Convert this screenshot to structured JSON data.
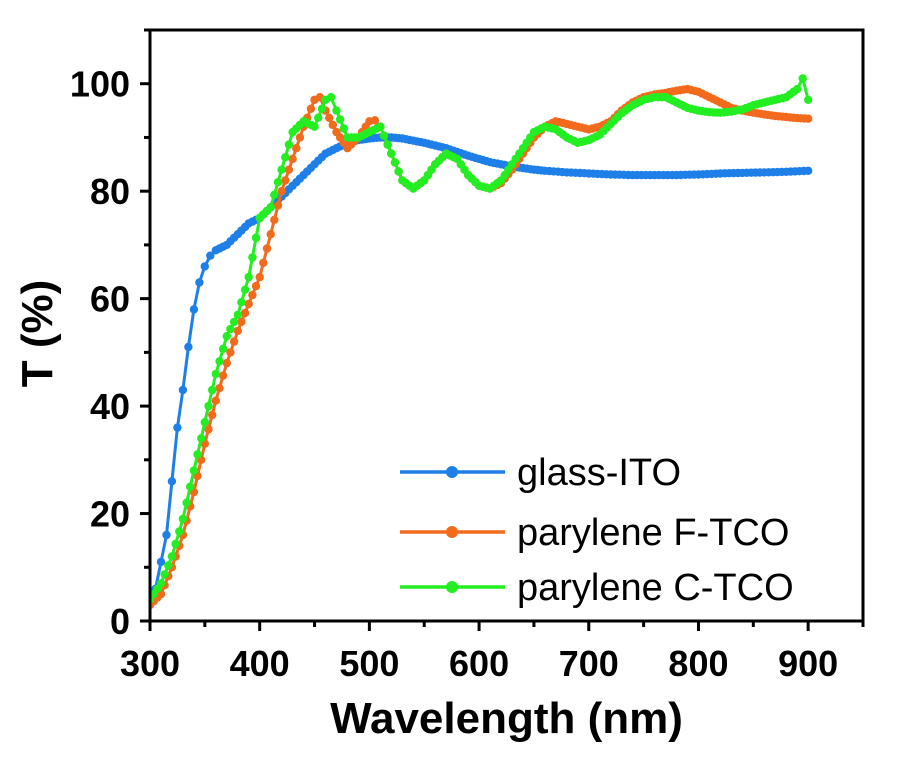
{
  "chart_data": {
    "type": "line",
    "xlabel": "Wavelength (nm)",
    "ylabel": "T (%)",
    "xlim": [
      300,
      950
    ],
    "ylim": [
      0,
      110
    ],
    "xticks": [
      300,
      400,
      500,
      600,
      700,
      800,
      900
    ],
    "yticks": [
      0,
      20,
      40,
      60,
      80,
      100
    ],
    "legend_position": "bottom-right",
    "grid": false,
    "series": [
      {
        "name": "glass-ITO",
        "color": "#1E7FE8",
        "points": [
          [
            300,
            3
          ],
          [
            305,
            6
          ],
          [
            310,
            11
          ],
          [
            315,
            16
          ],
          [
            320,
            26
          ],
          [
            325,
            36
          ],
          [
            330,
            43
          ],
          [
            335,
            51
          ],
          [
            340,
            58
          ],
          [
            345,
            63
          ],
          [
            350,
            66
          ],
          [
            355,
            68
          ],
          [
            360,
            69
          ],
          [
            370,
            70
          ],
          [
            380,
            72
          ],
          [
            390,
            74
          ],
          [
            400,
            75
          ],
          [
            410,
            77
          ],
          [
            420,
            79
          ],
          [
            430,
            81
          ],
          [
            440,
            83
          ],
          [
            450,
            85
          ],
          [
            460,
            87
          ],
          [
            470,
            88
          ],
          [
            480,
            89
          ],
          [
            490,
            89.5
          ],
          [
            500,
            89.8
          ],
          [
            510,
            90
          ],
          [
            520,
            90
          ],
          [
            530,
            89.8
          ],
          [
            540,
            89.4
          ],
          [
            550,
            89
          ],
          [
            560,
            88.5
          ],
          [
            570,
            88
          ],
          [
            580,
            87.3
          ],
          [
            590,
            86.6
          ],
          [
            600,
            86
          ],
          [
            610,
            85.4
          ],
          [
            620,
            85
          ],
          [
            630,
            84.6
          ],
          [
            640,
            84.3
          ],
          [
            650,
            84
          ],
          [
            660,
            83.8
          ],
          [
            680,
            83.5
          ],
          [
            700,
            83.3
          ],
          [
            720,
            83.1
          ],
          [
            740,
            83
          ],
          [
            760,
            83
          ],
          [
            780,
            83
          ],
          [
            800,
            83.1
          ],
          [
            820,
            83.3
          ],
          [
            840,
            83.4
          ],
          [
            860,
            83.5
          ],
          [
            880,
            83.6
          ],
          [
            900,
            83.8
          ]
        ]
      },
      {
        "name": "parylene F-TCO",
        "color": "#F26A1B",
        "points": [
          [
            300,
            3
          ],
          [
            310,
            5
          ],
          [
            320,
            10
          ],
          [
            330,
            16
          ],
          [
            340,
            24
          ],
          [
            350,
            33
          ],
          [
            360,
            41
          ],
          [
            370,
            48
          ],
          [
            380,
            54
          ],
          [
            390,
            59
          ],
          [
            400,
            64
          ],
          [
            410,
            72
          ],
          [
            420,
            80
          ],
          [
            430,
            86
          ],
          [
            440,
            92
          ],
          [
            450,
            97
          ],
          [
            455,
            97.5
          ],
          [
            460,
            95
          ],
          [
            470,
            91
          ],
          [
            480,
            88
          ],
          [
            490,
            90
          ],
          [
            500,
            93
          ],
          [
            505,
            93.2
          ],
          [
            510,
            92
          ],
          [
            520,
            87
          ],
          [
            530,
            82
          ],
          [
            540,
            80.5
          ],
          [
            550,
            82
          ],
          [
            560,
            85
          ],
          [
            570,
            87
          ],
          [
            580,
            86
          ],
          [
            590,
            83
          ],
          [
            600,
            81
          ],
          [
            610,
            80.5
          ],
          [
            620,
            81.5
          ],
          [
            630,
            84
          ],
          [
            640,
            87
          ],
          [
            650,
            90
          ],
          [
            660,
            92
          ],
          [
            670,
            93
          ],
          [
            680,
            92.5
          ],
          [
            690,
            92
          ],
          [
            700,
            91.5
          ],
          [
            710,
            92
          ],
          [
            720,
            93
          ],
          [
            730,
            95
          ],
          [
            740,
            96.5
          ],
          [
            750,
            97.5
          ],
          [
            760,
            98
          ],
          [
            770,
            98.3
          ],
          [
            780,
            98.7
          ],
          [
            790,
            99
          ],
          [
            800,
            98.5
          ],
          [
            810,
            97.5
          ],
          [
            820,
            96.5
          ],
          [
            830,
            95.5
          ],
          [
            840,
            95
          ],
          [
            850,
            94.6
          ],
          [
            860,
            94.3
          ],
          [
            870,
            94
          ],
          [
            880,
            93.8
          ],
          [
            890,
            93.6
          ],
          [
            900,
            93.5
          ]
        ]
      },
      {
        "name": "parylene C-TCO",
        "color": "#22EE22",
        "points": [
          [
            300,
            4
          ],
          [
            310,
            7
          ],
          [
            320,
            12
          ],
          [
            330,
            19
          ],
          [
            340,
            28
          ],
          [
            350,
            37
          ],
          [
            360,
            46
          ],
          [
            370,
            53
          ],
          [
            380,
            57
          ],
          [
            390,
            64
          ],
          [
            400,
            75
          ],
          [
            410,
            77
          ],
          [
            420,
            84
          ],
          [
            430,
            91
          ],
          [
            440,
            93
          ],
          [
            450,
            92
          ],
          [
            460,
            97
          ],
          [
            465,
            97.5
          ],
          [
            470,
            95
          ],
          [
            480,
            90
          ],
          [
            490,
            90
          ],
          [
            500,
            91
          ],
          [
            510,
            92
          ],
          [
            520,
            87
          ],
          [
            530,
            82
          ],
          [
            540,
            80.5
          ],
          [
            550,
            82
          ],
          [
            560,
            85
          ],
          [
            570,
            87
          ],
          [
            580,
            86
          ],
          [
            590,
            83
          ],
          [
            600,
            81
          ],
          [
            610,
            80.5
          ],
          [
            620,
            82
          ],
          [
            630,
            85
          ],
          [
            640,
            88
          ],
          [
            650,
            91
          ],
          [
            660,
            92
          ],
          [
            670,
            91.5
          ],
          [
            680,
            90
          ],
          [
            690,
            89
          ],
          [
            700,
            89.5
          ],
          [
            710,
            90.5
          ],
          [
            720,
            92.5
          ],
          [
            730,
            94.5
          ],
          [
            740,
            96
          ],
          [
            750,
            97
          ],
          [
            760,
            97.5
          ],
          [
            770,
            97.5
          ],
          [
            780,
            96.5
          ],
          [
            790,
            95.5
          ],
          [
            800,
            95
          ],
          [
            810,
            94.7
          ],
          [
            820,
            94.6
          ],
          [
            830,
            94.8
          ],
          [
            840,
            95.2
          ],
          [
            850,
            96
          ],
          [
            860,
            96.5
          ],
          [
            870,
            97
          ],
          [
            880,
            97.5
          ],
          [
            890,
            99
          ],
          [
            895,
            101
          ],
          [
            900,
            97
          ]
        ]
      }
    ]
  }
}
